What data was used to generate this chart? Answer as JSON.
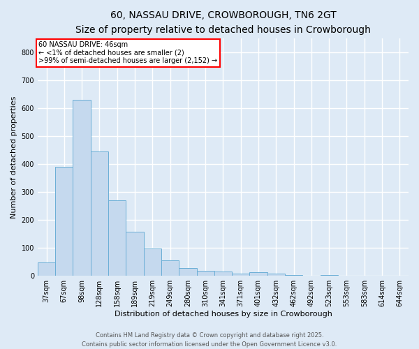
{
  "title_line1": "60, NASSAU DRIVE, CROWBOROUGH, TN6 2GT",
  "title_line2": "Size of property relative to detached houses in Crowborough",
  "xlabel": "Distribution of detached houses by size in Crowborough",
  "ylabel": "Number of detached properties",
  "categories": [
    "37sqm",
    "67sqm",
    "98sqm",
    "128sqm",
    "158sqm",
    "189sqm",
    "219sqm",
    "249sqm",
    "280sqm",
    "310sqm",
    "341sqm",
    "371sqm",
    "401sqm",
    "432sqm",
    "462sqm",
    "492sqm",
    "523sqm",
    "553sqm",
    "583sqm",
    "614sqm",
    "644sqm"
  ],
  "values": [
    47,
    390,
    630,
    445,
    270,
    157,
    98,
    55,
    28,
    17,
    15,
    8,
    13,
    7,
    3,
    0,
    3,
    0,
    0,
    0,
    0
  ],
  "bar_color": "#c5d9ee",
  "bar_edge_color": "#6aaed6",
  "ylim": [
    0,
    850
  ],
  "yticks": [
    0,
    100,
    200,
    300,
    400,
    500,
    600,
    700,
    800
  ],
  "annotation_box_text": "60 NASSAU DRIVE: 46sqm\n← <1% of detached houses are smaller (2)\n>99% of semi-detached houses are larger (2,152) →",
  "annotation_box_color": "white",
  "annotation_box_edge_color": "red",
  "footer_line1": "Contains HM Land Registry data © Crown copyright and database right 2025.",
  "footer_line2": "Contains public sector information licensed under the Open Government Licence v3.0.",
  "background_color": "#deeaf6",
  "plot_background": "#deeaf6",
  "grid_color": "white",
  "title_fontsize": 10,
  "subtitle_fontsize": 9,
  "axis_label_fontsize": 8,
  "tick_fontsize": 7,
  "annotation_fontsize": 7,
  "footer_fontsize": 6
}
